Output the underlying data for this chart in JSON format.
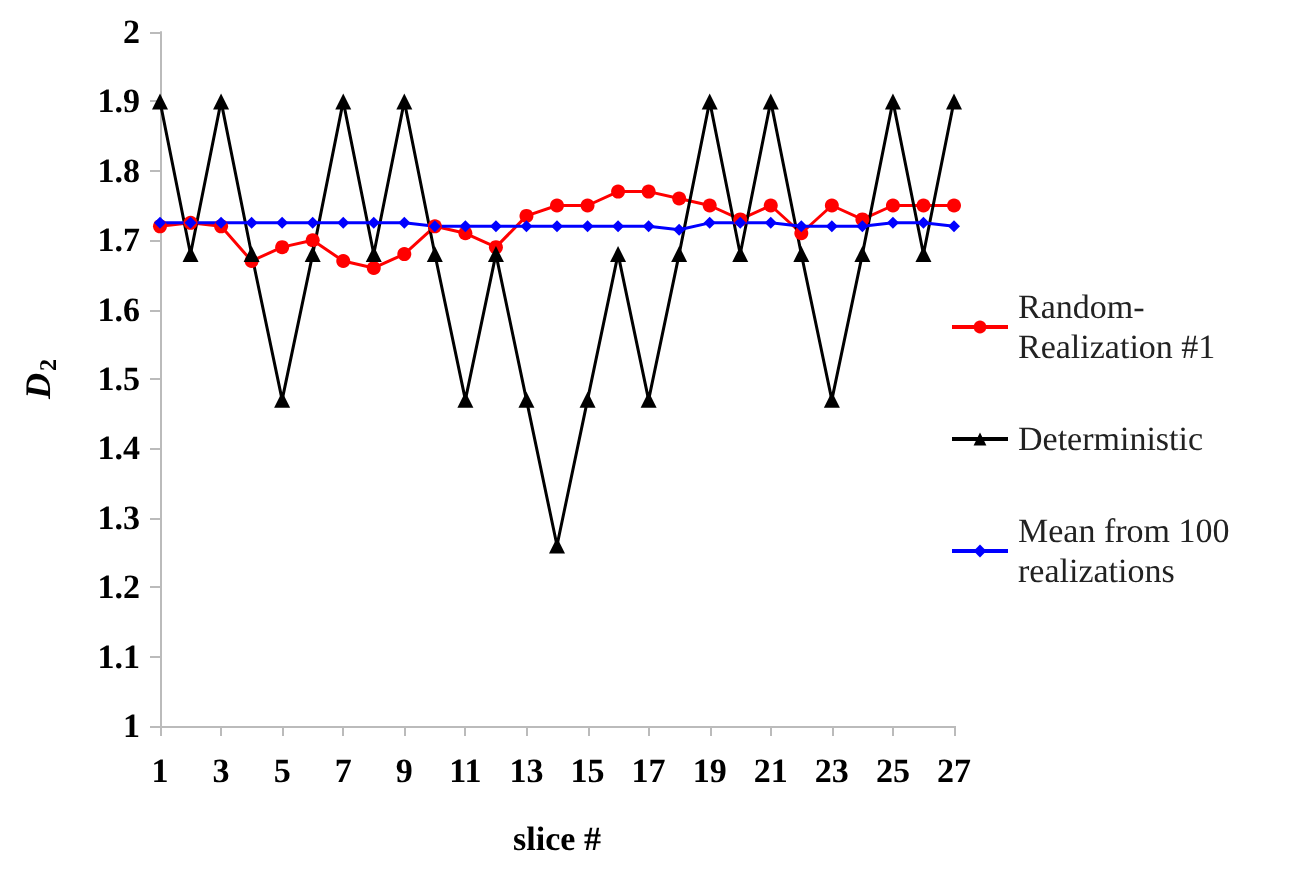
{
  "chart_data": {
    "type": "line",
    "xlabel": "slice #",
    "ylabel": "D$_{2}$",
    "x": [
      1,
      2,
      3,
      4,
      5,
      6,
      7,
      8,
      9,
      10,
      11,
      12,
      13,
      14,
      15,
      16,
      17,
      18,
      19,
      20,
      21,
      22,
      23,
      24,
      25,
      26,
      27
    ],
    "series": [
      {
        "name": "Random-Realization #1",
        "color": "#ff0000",
        "marker": "circle",
        "values": [
          1.72,
          1.725,
          1.72,
          1.67,
          1.69,
          1.7,
          1.67,
          1.66,
          1.68,
          1.72,
          1.71,
          1.69,
          1.735,
          1.75,
          1.75,
          1.77,
          1.77,
          1.76,
          1.75,
          1.73,
          1.75,
          1.71,
          1.75,
          1.73,
          1.75,
          1.75,
          1.75
        ]
      },
      {
        "name": "Deterministic",
        "color": "#000000",
        "marker": "triangle",
        "values": [
          1.9,
          1.68,
          1.9,
          1.68,
          1.47,
          1.68,
          1.9,
          1.68,
          1.9,
          1.68,
          1.47,
          1.68,
          1.47,
          1.26,
          1.47,
          1.68,
          1.47,
          1.68,
          1.9,
          1.68,
          1.9,
          1.68,
          1.47,
          1.68,
          1.9,
          1.68,
          1.9
        ]
      },
      {
        "name": "Mean from 100 realizations",
        "color": "#0000ff",
        "marker": "diamond",
        "values": [
          1.725,
          1.725,
          1.725,
          1.725,
          1.725,
          1.725,
          1.725,
          1.725,
          1.725,
          1.72,
          1.72,
          1.72,
          1.72,
          1.72,
          1.72,
          1.72,
          1.72,
          1.715,
          1.725,
          1.725,
          1.725,
          1.72,
          1.72,
          1.72,
          1.725,
          1.725,
          1.72
        ]
      }
    ],
    "xlim": [
      1,
      27
    ],
    "xticks": [
      1,
      3,
      5,
      7,
      9,
      11,
      13,
      15,
      17,
      19,
      21,
      23,
      25,
      27
    ],
    "ylim": [
      1,
      2
    ],
    "yticks": [
      1,
      1.1,
      1.2,
      1.3,
      1.4,
      1.5,
      1.6,
      1.7,
      1.8,
      1.9,
      2
    ],
    "grid": false,
    "legend": "right",
    "line_style": "solid"
  }
}
